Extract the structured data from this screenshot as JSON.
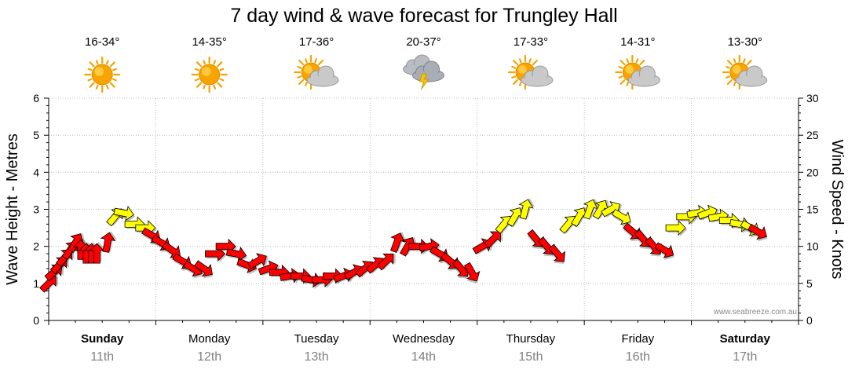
{
  "title": "7 day wind & wave forecast for Trungley Hall",
  "watermark": "www.seabreeze.com.au",
  "chart_data": {
    "type": "line",
    "title": "7 day wind & wave forecast for Trungley Hall",
    "ylabel": "Wave Height - Metres",
    "y2label": "Wind Speed - Knots",
    "ylim": [
      0,
      6
    ],
    "y2lim": [
      0,
      30
    ],
    "yticks": [
      "0",
      "1",
      "2",
      "3",
      "4",
      "5",
      "6"
    ],
    "y2ticks": [
      "0",
      "5",
      "10",
      "15",
      "20",
      "25",
      "30"
    ],
    "grid": true,
    "days": [
      {
        "day": "Sunday",
        "date": "11th",
        "temp": "16-34°",
        "weather": "sunny",
        "bold": true
      },
      {
        "day": "Monday",
        "date": "12th",
        "temp": "14-35°",
        "weather": "sunny",
        "bold": false
      },
      {
        "day": "Tuesday",
        "date": "13th",
        "temp": "17-36°",
        "weather": "partly-cloudy",
        "bold": false
      },
      {
        "day": "Wednesday",
        "date": "14th",
        "temp": "20-37°",
        "weather": "storm",
        "bold": false
      },
      {
        "day": "Thursday",
        "date": "15th",
        "temp": "17-33°",
        "weather": "partly-cloudy",
        "bold": false
      },
      {
        "day": "Friday",
        "date": "16th",
        "temp": "14-31°",
        "weather": "partly-cloudy",
        "bold": false
      },
      {
        "day": "Saturday",
        "date": "17th",
        "temp": "13-30°",
        "weather": "partly-cloudy",
        "bold": true
      }
    ],
    "wind_series": {
      "name": "Wind Speed",
      "unit": "knots",
      "colors": {
        "light": "#ff0000",
        "strong": "#ffff00"
      },
      "threshold": 12.5,
      "points": [
        {
          "t": 0.0,
          "speed": 5.0,
          "dir": 225
        },
        {
          "t": 0.05,
          "speed": 6.5,
          "dir": 230
        },
        {
          "t": 0.1,
          "speed": 7.5,
          "dir": 225
        },
        {
          "t": 0.15,
          "speed": 8.5,
          "dir": 220
        },
        {
          "t": 0.2,
          "speed": 9.5,
          "dir": 215
        },
        {
          "t": 0.25,
          "speed": 10.5,
          "dir": 210
        },
        {
          "t": 0.3,
          "speed": 9.5,
          "dir": 180
        },
        {
          "t": 0.35,
          "speed": 9.0,
          "dir": 180
        },
        {
          "t": 0.4,
          "speed": 9.0,
          "dir": 180
        },
        {
          "t": 0.45,
          "speed": 9.0,
          "dir": 180
        },
        {
          "t": 0.55,
          "speed": 10.5,
          "dir": 190
        },
        {
          "t": 0.62,
          "speed": 14.0,
          "dir": 220
        },
        {
          "t": 0.7,
          "speed": 14.5,
          "dir": 280
        },
        {
          "t": 0.8,
          "speed": 13.0,
          "dir": 270
        },
        {
          "t": 0.9,
          "speed": 12.5,
          "dir": 270
        },
        {
          "t": 0.96,
          "speed": 11.5,
          "dir": 300
        },
        {
          "t": 1.05,
          "speed": 10.5,
          "dir": 300
        },
        {
          "t": 1.15,
          "speed": 9.5,
          "dir": 305
        },
        {
          "t": 1.25,
          "speed": 8.0,
          "dir": 300
        },
        {
          "t": 1.35,
          "speed": 7.0,
          "dir": 300
        },
        {
          "t": 1.45,
          "speed": 7.0,
          "dir": 305
        },
        {
          "t": 1.55,
          "speed": 9.0,
          "dir": 270
        },
        {
          "t": 1.65,
          "speed": 10.0,
          "dir": 270
        },
        {
          "t": 1.75,
          "speed": 9.0,
          "dir": 280
        },
        {
          "t": 1.85,
          "speed": 7.5,
          "dir": 290
        },
        {
          "t": 1.95,
          "speed": 8.0,
          "dir": 240
        },
        {
          "t": 2.05,
          "speed": 7.0,
          "dir": 250
        },
        {
          "t": 2.15,
          "speed": 6.5,
          "dir": 270
        },
        {
          "t": 2.25,
          "speed": 6.0,
          "dir": 260
        },
        {
          "t": 2.35,
          "speed": 6.0,
          "dir": 270
        },
        {
          "t": 2.45,
          "speed": 5.5,
          "dir": 280
        },
        {
          "t": 2.55,
          "speed": 5.5,
          "dir": 270
        },
        {
          "t": 2.65,
          "speed": 6.0,
          "dir": 270
        },
        {
          "t": 2.75,
          "speed": 6.0,
          "dir": 250
        },
        {
          "t": 2.85,
          "speed": 6.5,
          "dir": 240
        },
        {
          "t": 2.95,
          "speed": 7.0,
          "dir": 230
        },
        {
          "t": 3.05,
          "speed": 7.5,
          "dir": 230
        },
        {
          "t": 3.15,
          "speed": 8.0,
          "dir": 225
        },
        {
          "t": 3.25,
          "speed": 10.5,
          "dir": 200
        },
        {
          "t": 3.35,
          "speed": 10.0,
          "dir": 210
        },
        {
          "t": 3.45,
          "speed": 10.0,
          "dir": 270
        },
        {
          "t": 3.55,
          "speed": 10.0,
          "dir": 260
        },
        {
          "t": 3.65,
          "speed": 9.0,
          "dir": 300
        },
        {
          "t": 3.75,
          "speed": 8.0,
          "dir": 310
        },
        {
          "t": 3.85,
          "speed": 7.0,
          "dir": 320
        },
        {
          "t": 3.95,
          "speed": 6.5,
          "dir": 330
        },
        {
          "t": 4.05,
          "speed": 10.0,
          "dir": 240
        },
        {
          "t": 4.15,
          "speed": 11.0,
          "dir": 225
        },
        {
          "t": 4.25,
          "speed": 13.0,
          "dir": 220
        },
        {
          "t": 4.35,
          "speed": 14.0,
          "dir": 210
        },
        {
          "t": 4.45,
          "speed": 15.0,
          "dir": 195
        },
        {
          "t": 4.55,
          "speed": 11.0,
          "dir": 320
        },
        {
          "t": 4.65,
          "speed": 10.0,
          "dir": 320
        },
        {
          "t": 4.75,
          "speed": 9.0,
          "dir": 320
        },
        {
          "t": 4.85,
          "speed": 13.0,
          "dir": 220
        },
        {
          "t": 4.95,
          "speed": 14.0,
          "dir": 210
        },
        {
          "t": 5.05,
          "speed": 15.0,
          "dir": 200
        },
        {
          "t": 5.15,
          "speed": 15.0,
          "dir": 210
        },
        {
          "t": 5.25,
          "speed": 15.0,
          "dir": 240
        },
        {
          "t": 5.35,
          "speed": 14.0,
          "dir": 300
        },
        {
          "t": 5.45,
          "speed": 12.0,
          "dir": 310
        },
        {
          "t": 5.55,
          "speed": 11.0,
          "dir": 320
        },
        {
          "t": 5.65,
          "speed": 10.0,
          "dir": 320
        },
        {
          "t": 5.75,
          "speed": 9.5,
          "dir": 300
        },
        {
          "t": 5.85,
          "speed": 12.5,
          "dir": 270
        },
        {
          "t": 5.95,
          "speed": 14.0,
          "dir": 270
        },
        {
          "t": 6.05,
          "speed": 14.5,
          "dir": 260
        },
        {
          "t": 6.15,
          "speed": 14.5,
          "dir": 250
        },
        {
          "t": 6.25,
          "speed": 14.0,
          "dir": 260
        },
        {
          "t": 6.35,
          "speed": 13.5,
          "dir": 270
        },
        {
          "t": 6.45,
          "speed": 13.0,
          "dir": 280
        },
        {
          "t": 6.55,
          "speed": 12.5,
          "dir": 300
        },
        {
          "t": 6.62,
          "speed": 12.0,
          "dir": 300
        }
      ]
    }
  }
}
